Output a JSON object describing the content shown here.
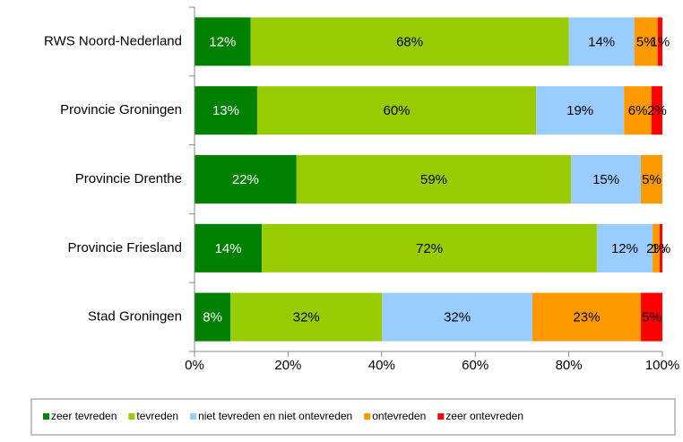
{
  "chart_data": {
    "type": "stacked_barh",
    "categories": [
      "RWS Noord-Nederland",
      "Provincie Groningen",
      "Provincie Drenthe",
      "Provincie Friesland",
      "Stad Groningen"
    ],
    "series": [
      {
        "name": "zeer tevreden",
        "color": "#008000",
        "values": [
          12,
          13.4,
          21.8,
          14.4,
          7.7
        ],
        "value_labels": [
          "12%",
          "13%",
          "22%",
          "14%",
          "8%"
        ]
      },
      {
        "name": "tevreden",
        "color": "#99cc00",
        "values": [
          68,
          59.6,
          58.7,
          71.6,
          32.4
        ],
        "value_labels": [
          "68%",
          "60%",
          "59%",
          "72%",
          "32%"
        ]
      },
      {
        "name": "niet tevreden en niet ontevreden",
        "color": "#99ccff",
        "values": [
          14,
          18.8,
          14.9,
          11.9,
          32.1
        ],
        "value_labels": [
          "14%",
          "19%",
          "15%",
          "12%",
          "32%"
        ]
      },
      {
        "name": "ontevreden",
        "color": "#ff9900",
        "values": [
          5,
          5.9,
          4.6,
          1.5,
          23.2
        ],
        "value_labels": [
          "5%",
          "6%",
          "5%",
          "2%",
          "23%"
        ]
      },
      {
        "name": "zeer ontevreden",
        "color": "#ff0000",
        "values": [
          1,
          2.3,
          null,
          0.6,
          4.6
        ],
        "value_labels": [
          "1%",
          "2%",
          null,
          "1%",
          "5%"
        ]
      }
    ],
    "xlim": [
      0,
      100
    ],
    "xticks": [
      {
        "value": 0,
        "label": "0%"
      },
      {
        "value": 20,
        "label": "20%"
      },
      {
        "value": 40,
        "label": "40%"
      },
      {
        "value": 60,
        "label": "60%"
      },
      {
        "value": 80,
        "label": "80%"
      },
      {
        "value": 100,
        "label": "100%"
      }
    ],
    "legend": "bottom"
  }
}
